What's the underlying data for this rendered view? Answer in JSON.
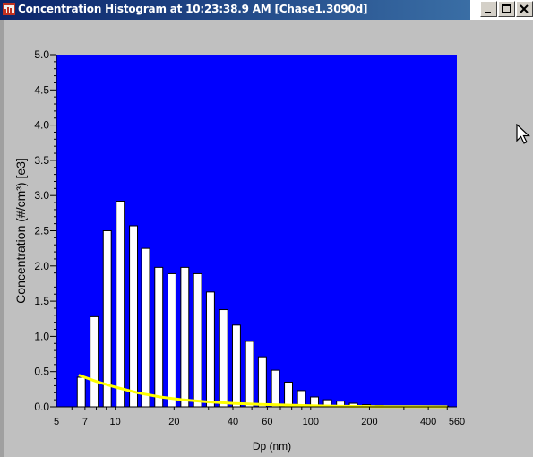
{
  "window": {
    "title": "Concentration Histogram at 10:23:38.9 AM  [Chase1.3090d]",
    "minimize_label": "minimize",
    "maximize_label": "maximize",
    "close_label": "close"
  },
  "colors": {
    "plot_background": "#0000ff",
    "bar_fill": "#ffffff",
    "bar_stroke": "#000000",
    "fit_curve": "#ffff00",
    "title_bar": "#0a246a"
  },
  "chart_data": {
    "type": "bar",
    "xlabel": "Dp (nm)",
    "ylabel": "Concentration (#/cm³) [e3]",
    "xscale": "log",
    "xlim": [
      5,
      560
    ],
    "ylim": [
      0,
      5.0
    ],
    "yticks": [
      "0.0",
      "0.5",
      "1.0",
      "1.5",
      "2.0",
      "2.5",
      "3.0",
      "3.5",
      "4.0",
      "4.5",
      "5.0"
    ],
    "xticks": [
      "5",
      "7",
      "10",
      "20",
      "40",
      "60",
      "100",
      "200",
      "400",
      "560"
    ],
    "grid": false,
    "bars": [
      {
        "dp": 6.7,
        "value": 0.42
      },
      {
        "dp": 7.8,
        "value": 1.28
      },
      {
        "dp": 9.1,
        "value": 2.5
      },
      {
        "dp": 10.6,
        "value": 2.92
      },
      {
        "dp": 12.4,
        "value": 2.57
      },
      {
        "dp": 14.3,
        "value": 2.25
      },
      {
        "dp": 16.7,
        "value": 1.98
      },
      {
        "dp": 19.5,
        "value": 1.89
      },
      {
        "dp": 22.7,
        "value": 1.98
      },
      {
        "dp": 26.4,
        "value": 1.89
      },
      {
        "dp": 30.7,
        "value": 1.63
      },
      {
        "dp": 35.9,
        "value": 1.38
      },
      {
        "dp": 41.7,
        "value": 1.16
      },
      {
        "dp": 48.7,
        "value": 0.93
      },
      {
        "dp": 56.6,
        "value": 0.71
      },
      {
        "dp": 66.1,
        "value": 0.52
      },
      {
        "dp": 77.0,
        "value": 0.35
      },
      {
        "dp": 89.8,
        "value": 0.23
      },
      {
        "dp": 104.6,
        "value": 0.14
      },
      {
        "dp": 121.9,
        "value": 0.1
      },
      {
        "dp": 142.2,
        "value": 0.08
      },
      {
        "dp": 165.5,
        "value": 0.05
      },
      {
        "dp": 193.0,
        "value": 0.03
      },
      {
        "dp": 225.0,
        "value": 0.02
      },
      {
        "dp": 262.0,
        "value": 0.01
      },
      {
        "dp": 305.0,
        "value": 0.01
      },
      {
        "dp": 356.0,
        "value": 0.01
      },
      {
        "dp": 415.0,
        "value": 0.01
      },
      {
        "dp": 484.0,
        "value": 0.01
      }
    ],
    "fit_curve": [
      {
        "dp": 6.5,
        "value": 0.45
      },
      {
        "dp": 8,
        "value": 0.36
      },
      {
        "dp": 10,
        "value": 0.28
      },
      {
        "dp": 13,
        "value": 0.2
      },
      {
        "dp": 17,
        "value": 0.14
      },
      {
        "dp": 22,
        "value": 0.1
      },
      {
        "dp": 30,
        "value": 0.07
      },
      {
        "dp": 40,
        "value": 0.05
      },
      {
        "dp": 55,
        "value": 0.035
      },
      {
        "dp": 75,
        "value": 0.025
      },
      {
        "dp": 100,
        "value": 0.015
      },
      {
        "dp": 150,
        "value": 0.008
      },
      {
        "dp": 220,
        "value": 0.004
      },
      {
        "dp": 350,
        "value": 0.002
      },
      {
        "dp": 500,
        "value": 0.001
      }
    ]
  }
}
